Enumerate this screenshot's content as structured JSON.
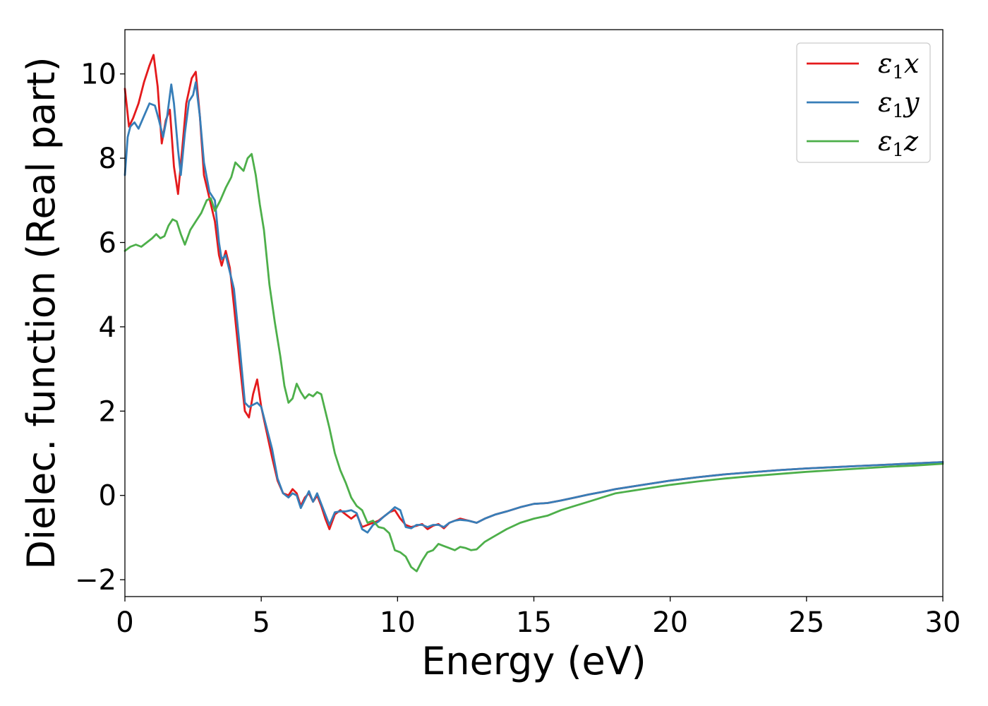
{
  "chart_data": {
    "type": "line",
    "xlabel": "Energy (eV)",
    "ylabel": "Dielec. function (Real part)",
    "xlim": [
      0,
      30
    ],
    "ylim": [
      -2.4,
      11.05
    ],
    "xticks": [
      0,
      5,
      10,
      15,
      20,
      25,
      30
    ],
    "xtick_labels": [
      "0",
      "5",
      "10",
      "15",
      "20",
      "25",
      "30"
    ],
    "yticks": [
      -2,
      0,
      2,
      4,
      6,
      8,
      10
    ],
    "ytick_labels": [
      "−2",
      "0",
      "2",
      "4",
      "6",
      "8",
      "10"
    ],
    "grid": false,
    "legend_position": "top-right",
    "series": [
      {
        "name": "ε1x",
        "legend_base": "ε",
        "legend_sub": "1",
        "legend_suffix": "x",
        "color": "#e41a1c",
        "x": [
          0,
          0.15,
          0.3,
          0.5,
          0.7,
          0.9,
          1.05,
          1.2,
          1.35,
          1.5,
          1.65,
          1.8,
          1.95,
          2.1,
          2.25,
          2.45,
          2.6,
          2.75,
          2.9,
          3.1,
          3.3,
          3.45,
          3.55,
          3.7,
          3.85,
          4.0,
          4.2,
          4.4,
          4.55,
          4.7,
          4.85,
          5.0,
          5.2,
          5.4,
          5.6,
          5.8,
          6.0,
          6.15,
          6.3,
          6.45,
          6.6,
          6.75,
          6.9,
          7.05,
          7.2,
          7.35,
          7.5,
          7.7,
          7.9,
          8.1,
          8.3,
          8.5,
          8.7,
          8.9,
          9.1,
          9.3,
          9.5,
          9.7,
          9.9,
          10.1,
          10.3,
          10.5,
          10.7,
          10.9,
          11.1,
          11.3,
          11.5,
          11.7,
          11.9,
          12.1,
          12.3,
          12.6,
          12.9,
          13.2,
          13.6,
          14.0,
          14.5,
          15.0,
          15.5,
          16.0,
          16.5,
          17.0,
          17.5,
          18.0,
          19.0,
          20.0,
          21.0,
          22.0,
          23.0,
          24.0,
          25.0,
          26.0,
          27.0,
          28.0,
          29.0,
          30.0
        ],
        "y": [
          9.65,
          8.75,
          8.95,
          9.3,
          9.8,
          10.2,
          10.45,
          9.7,
          8.35,
          8.9,
          9.15,
          7.8,
          7.15,
          8.2,
          9.3,
          9.9,
          10.05,
          9.0,
          7.6,
          7.05,
          6.5,
          5.7,
          5.45,
          5.8,
          5.4,
          4.5,
          3.2,
          2.0,
          1.85,
          2.4,
          2.75,
          2.1,
          1.5,
          0.9,
          0.35,
          0.05,
          0.0,
          0.15,
          0.05,
          -0.25,
          -0.05,
          0.05,
          -0.15,
          0.0,
          -0.25,
          -0.55,
          -0.8,
          -0.45,
          -0.35,
          -0.45,
          -0.55,
          -0.45,
          -0.75,
          -0.7,
          -0.65,
          -0.6,
          -0.5,
          -0.4,
          -0.35,
          -0.55,
          -0.7,
          -0.75,
          -0.72,
          -0.68,
          -0.8,
          -0.72,
          -0.68,
          -0.78,
          -0.65,
          -0.6,
          -0.55,
          -0.6,
          -0.65,
          -0.55,
          -0.45,
          -0.38,
          -0.28,
          -0.2,
          -0.18,
          -0.12,
          -0.05,
          0.02,
          0.08,
          0.15,
          0.25,
          0.35,
          0.43,
          0.5,
          0.55,
          0.6,
          0.64,
          0.67,
          0.7,
          0.73,
          0.76,
          0.79
        ]
      },
      {
        "name": "ε1y",
        "legend_base": "ε",
        "legend_sub": "1",
        "legend_suffix": "y",
        "color": "#377eb8",
        "x": [
          0,
          0.1,
          0.2,
          0.35,
          0.5,
          0.7,
          0.9,
          1.1,
          1.25,
          1.4,
          1.55,
          1.7,
          1.8,
          1.95,
          2.05,
          2.2,
          2.35,
          2.5,
          2.6,
          2.75,
          2.9,
          3.1,
          3.3,
          3.45,
          3.55,
          3.7,
          3.85,
          4.0,
          4.2,
          4.4,
          4.55,
          4.7,
          4.85,
          5.0,
          5.2,
          5.4,
          5.6,
          5.8,
          6.0,
          6.15,
          6.3,
          6.45,
          6.6,
          6.75,
          6.9,
          7.05,
          7.2,
          7.35,
          7.5,
          7.7,
          7.9,
          8.1,
          8.3,
          8.5,
          8.7,
          8.9,
          9.1,
          9.3,
          9.5,
          9.7,
          9.9,
          10.1,
          10.3,
          10.5,
          10.7,
          10.9,
          11.1,
          11.3,
          11.5,
          11.7,
          11.9,
          12.1,
          12.3,
          12.6,
          12.9,
          13.2,
          13.6,
          14.0,
          14.5,
          15.0,
          15.5,
          16.0,
          16.5,
          17.0,
          17.5,
          18.0,
          19.0,
          20.0,
          21.0,
          22.0,
          23.0,
          24.0,
          25.0,
          26.0,
          27.0,
          28.0,
          29.0,
          30.0
        ],
        "y": [
          7.6,
          8.5,
          8.75,
          8.85,
          8.7,
          9.0,
          9.3,
          9.25,
          8.9,
          8.5,
          9.0,
          9.75,
          9.3,
          8.2,
          7.6,
          8.6,
          9.35,
          9.5,
          9.8,
          9.0,
          7.9,
          7.2,
          7.0,
          6.0,
          5.6,
          5.7,
          5.3,
          4.9,
          3.6,
          2.2,
          2.1,
          2.15,
          2.2,
          2.1,
          1.6,
          1.1,
          0.4,
          0.05,
          -0.05,
          0.05,
          0.0,
          -0.3,
          -0.1,
          0.1,
          -0.15,
          0.05,
          -0.2,
          -0.45,
          -0.7,
          -0.4,
          -0.38,
          -0.38,
          -0.35,
          -0.42,
          -0.8,
          -0.88,
          -0.7,
          -0.62,
          -0.5,
          -0.4,
          -0.28,
          -0.35,
          -0.75,
          -0.78,
          -0.7,
          -0.7,
          -0.75,
          -0.7,
          -0.7,
          -0.75,
          -0.65,
          -0.6,
          -0.58,
          -0.6,
          -0.65,
          -0.55,
          -0.45,
          -0.38,
          -0.28,
          -0.2,
          -0.18,
          -0.12,
          -0.05,
          0.02,
          0.08,
          0.15,
          0.25,
          0.35,
          0.43,
          0.5,
          0.55,
          0.6,
          0.64,
          0.67,
          0.7,
          0.73,
          0.76,
          0.79
        ]
      },
      {
        "name": "ε1z",
        "legend_base": "ε",
        "legend_sub": "1",
        "legend_suffix": "z",
        "color": "#4daf4a",
        "x": [
          0,
          0.2,
          0.4,
          0.6,
          0.8,
          1.0,
          1.15,
          1.3,
          1.45,
          1.6,
          1.75,
          1.9,
          2.05,
          2.2,
          2.4,
          2.6,
          2.8,
          3.0,
          3.15,
          3.3,
          3.5,
          3.7,
          3.9,
          4.05,
          4.2,
          4.35,
          4.5,
          4.65,
          4.8,
          4.95,
          5.1,
          5.3,
          5.5,
          5.7,
          5.85,
          6.0,
          6.15,
          6.3,
          6.45,
          6.6,
          6.75,
          6.9,
          7.05,
          7.2,
          7.35,
          7.5,
          7.7,
          7.9,
          8.1,
          8.3,
          8.5,
          8.7,
          8.9,
          9.1,
          9.3,
          9.5,
          9.7,
          9.9,
          10.1,
          10.3,
          10.5,
          10.7,
          10.9,
          11.1,
          11.3,
          11.5,
          11.7,
          11.9,
          12.1,
          12.3,
          12.5,
          12.7,
          12.9,
          13.2,
          13.6,
          14.0,
          14.5,
          15.0,
          15.5,
          16.0,
          16.5,
          17.0,
          17.5,
          18.0,
          19.0,
          20.0,
          21.0,
          22.0,
          23.0,
          24.0,
          25.0,
          26.0,
          27.0,
          28.0,
          29.0,
          30.0
        ],
        "y": [
          5.8,
          5.9,
          5.95,
          5.9,
          6.0,
          6.1,
          6.2,
          6.1,
          6.15,
          6.4,
          6.55,
          6.5,
          6.2,
          5.95,
          6.3,
          6.5,
          6.7,
          7.0,
          7.05,
          6.75,
          7.0,
          7.3,
          7.55,
          7.9,
          7.8,
          7.7,
          8.0,
          8.1,
          7.6,
          6.9,
          6.3,
          5.0,
          4.1,
          3.3,
          2.6,
          2.2,
          2.3,
          2.65,
          2.45,
          2.3,
          2.4,
          2.35,
          2.45,
          2.4,
          2.0,
          1.6,
          1.0,
          0.6,
          0.3,
          -0.05,
          -0.25,
          -0.35,
          -0.65,
          -0.6,
          -0.75,
          -0.78,
          -0.9,
          -1.3,
          -1.35,
          -1.45,
          -1.7,
          -1.8,
          -1.55,
          -1.35,
          -1.3,
          -1.15,
          -1.2,
          -1.25,
          -1.3,
          -1.22,
          -1.25,
          -1.3,
          -1.28,
          -1.1,
          -0.95,
          -0.8,
          -0.65,
          -0.55,
          -0.48,
          -0.35,
          -0.25,
          -0.15,
          -0.05,
          0.05,
          0.15,
          0.25,
          0.33,
          0.4,
          0.46,
          0.51,
          0.56,
          0.6,
          0.64,
          0.68,
          0.71,
          0.75
        ]
      }
    ]
  }
}
